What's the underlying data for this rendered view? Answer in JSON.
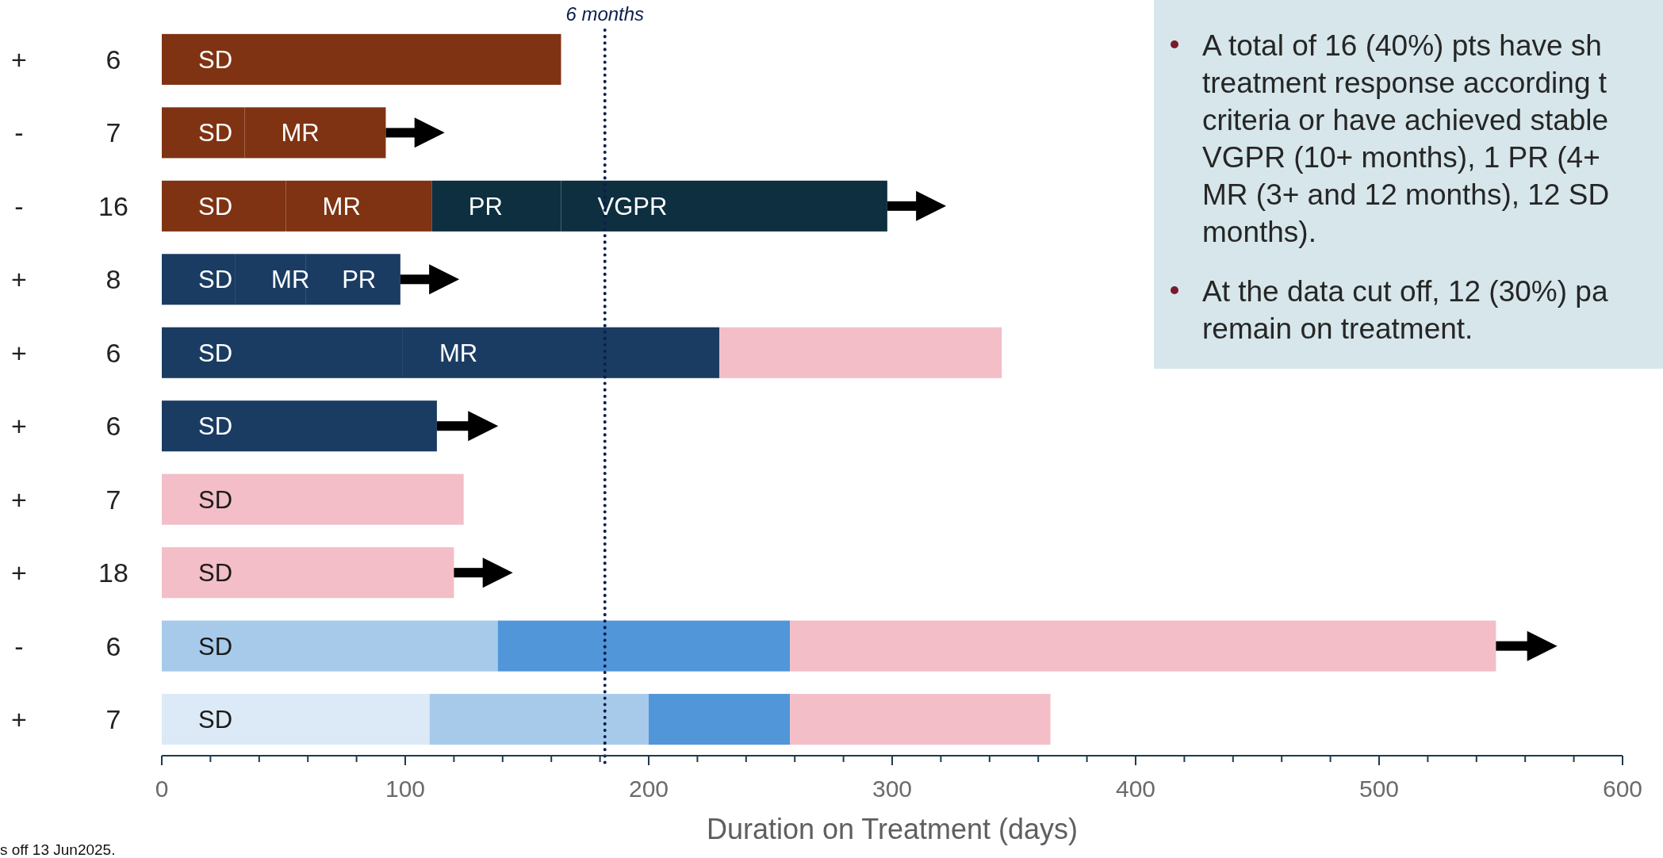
{
  "chart_data": {
    "type": "bar",
    "orientation": "horizontal",
    "stacked": true,
    "categories": [
      "6",
      "7",
      "16",
      "8",
      "6",
      "6",
      "7",
      "18",
      "6",
      "7"
    ],
    "series": [
      {
        "values": [
          164,
          34,
          51,
          30,
          99,
          113,
          124,
          120,
          138,
          110
        ],
        "value_labels": [
          "SD",
          "SD",
          "SD",
          "SD",
          "SD",
          "SD",
          "SD",
          "SD",
          "SD",
          "SD"
        ],
        "colors": [
          "#7f3312",
          "#7f3312",
          "#7f3312",
          "#1a3c63",
          "#1a3c63",
          "#1a3c63",
          "#f3bec7",
          "#f3bec7",
          "#a7caeb",
          "#dce9f6"
        ]
      },
      {
        "values": [
          null,
          58,
          60,
          29,
          130,
          null,
          null,
          null,
          120,
          90
        ],
        "value_labels": [
          null,
          "MR",
          "MR",
          "MR",
          "MR",
          null,
          null,
          null,
          null,
          null
        ],
        "colors": [
          null,
          "#7f3312",
          "#7f3312",
          "#1a3c63",
          "#1a3c63",
          null,
          null,
          null,
          "#5096d9",
          "#a7caeb"
        ]
      },
      {
        "values": [
          null,
          null,
          53,
          39,
          116,
          null,
          null,
          null,
          290,
          58
        ],
        "value_labels": [
          null,
          null,
          "PR",
          "PR",
          null,
          null,
          null,
          null,
          null,
          null
        ],
        "colors": [
          null,
          null,
          "#0d2f40",
          "#1a3c63",
          "#f3bec7",
          null,
          null,
          null,
          "#f3bec7",
          "#5096d9"
        ]
      },
      {
        "values": [
          null,
          null,
          134,
          null,
          null,
          null,
          null,
          null,
          null,
          107
        ],
        "value_labels": [
          null,
          null,
          "VGPR",
          null,
          null,
          null,
          null,
          null,
          null,
          null
        ],
        "colors": [
          null,
          null,
          "#0d2f40",
          null,
          null,
          null,
          null,
          null,
          null,
          "#f3bec7"
        ]
      },
      {
        "type": "scatter",
        "marker": "triangle",
        "color": "#000000",
        "values": [
          null,
          110,
          316,
          116,
          null,
          132,
          null,
          138,
          567,
          null
        ]
      }
    ],
    "xlim": [
      0,
      600
    ],
    "xticks": [
      0,
      {
        "value": 20,
        "label": null
      },
      {
        "value": 40,
        "label": null
      },
      {
        "value": 60,
        "label": null
      },
      {
        "value": 80,
        "label": null
      },
      100,
      {
        "value": 120,
        "label": null
      },
      {
        "value": 140,
        "label": null
      },
      {
        "value": 160,
        "label": null
      },
      {
        "value": 180,
        "label": null
      },
      200,
      {
        "value": 220,
        "label": null
      },
      {
        "value": 240,
        "label": null
      },
      {
        "value": 260,
        "label": null
      },
      {
        "value": 280,
        "label": null
      },
      300,
      {
        "value": 320,
        "label": null
      },
      {
        "value": 340,
        "label": null
      },
      {
        "value": 360,
        "label": null
      },
      {
        "value": 380,
        "label": null
      },
      400,
      {
        "value": 420,
        "label": null
      },
      {
        "value": 440,
        "label": null
      },
      {
        "value": 460,
        "label": null
      },
      {
        "value": 480,
        "label": null
      },
      500,
      {
        "value": 520,
        "label": null
      },
      {
        "value": 540,
        "label": null
      },
      {
        "value": 560,
        "label": null
      },
      {
        "value": 580,
        "label": null
      },
      600
    ],
    "xlabel": "Duration on Treatment (days)",
    "ref_lines": [
      {
        "axis": "x",
        "value": 182,
        "label": "6 months",
        "line_style": "dotted",
        "color": "#0b1f4d"
      }
    ],
    "annotations": [
      "+",
      "-",
      "-",
      "+",
      "+",
      "+",
      "+",
      "+",
      "-",
      "+",
      "A total of 16 (40%) pts have sh\ntreatment response according t\ncriteria or have achieved stable\nVGPR (10+ months), 1 PR (4+\nMR (3+ and 12 months), 12 SD\nmonths).",
      "At the data cut off, 12 (30%) pa\nremain on treatment.",
      "s off 13 Jun2025."
    ]
  }
}
